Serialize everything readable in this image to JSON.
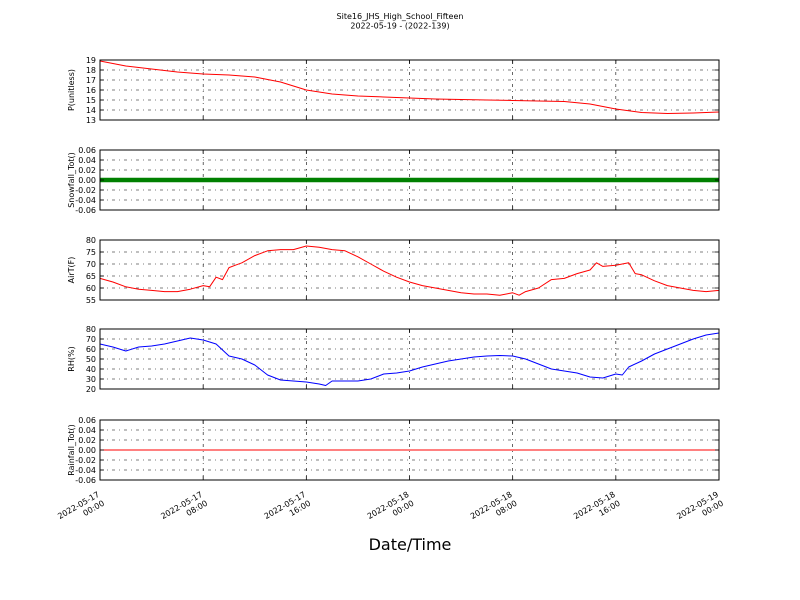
{
  "figure": {
    "title_line1": "Site16_JHS_High_School_Fifteen",
    "title_line2": "2022-05-19 - (2022-139)",
    "xlabel": "Date/Time",
    "x_ticks": [
      {
        "l1": "2022-05-17",
        "l2": "00:00",
        "h": 0
      },
      {
        "l1": "2022-05-17",
        "l2": "08:00",
        "h": 8
      },
      {
        "l1": "2022-05-17",
        "l2": "16:00",
        "h": 16
      },
      {
        "l1": "2022-05-18",
        "l2": "00:00",
        "h": 24
      },
      {
        "l1": "2022-05-18",
        "l2": "08:00",
        "h": 32
      },
      {
        "l1": "2022-05-18",
        "l2": "16:00",
        "h": 40
      },
      {
        "l1": "2022-05-19",
        "l2": "00:00",
        "h": 48
      }
    ]
  },
  "chart_data": [
    {
      "type": "line",
      "ylabel": "P(unitless)",
      "ylim": [
        13,
        19
      ],
      "yticks": [
        13,
        14,
        15,
        16,
        17,
        18,
        19
      ],
      "grid": true,
      "color": "#ff0000",
      "x_hours": [
        0,
        2,
        4,
        6,
        8,
        10,
        12,
        14,
        16,
        18,
        20,
        22,
        24,
        26,
        28,
        30,
        32,
        34,
        36,
        38,
        40,
        42,
        44,
        46,
        48
      ],
      "values": [
        18.9,
        18.4,
        18.1,
        17.8,
        17.6,
        17.5,
        17.3,
        16.8,
        16.0,
        15.6,
        15.4,
        15.3,
        15.2,
        15.1,
        15.05,
        15.0,
        14.95,
        14.9,
        14.85,
        14.6,
        14.1,
        13.75,
        13.65,
        13.7,
        13.8
      ]
    },
    {
      "type": "line",
      "ylabel": "Snowfall_Tot()",
      "ylim": [
        -0.06,
        0.06
      ],
      "yticks": [
        -0.06,
        -0.04,
        -0.02,
        0.0,
        0.02,
        0.04,
        0.06
      ],
      "grid": true,
      "color": "#008000",
      "marker": "dot",
      "x_hours": [
        0,
        48
      ],
      "values": [
        0,
        0
      ]
    },
    {
      "type": "line",
      "ylabel": "AirT(F)",
      "ylim": [
        55,
        80
      ],
      "yticks": [
        55,
        60,
        65,
        70,
        75,
        80
      ],
      "grid": true,
      "color": "#ff0000",
      "x_hours": [
        0,
        1,
        2,
        3,
        4,
        5,
        6,
        7,
        8,
        8.5,
        9,
        9.5,
        10,
        10.5,
        11,
        12,
        13,
        14,
        15,
        16,
        17,
        18,
        19,
        20,
        21,
        22,
        23,
        24,
        25,
        26,
        27,
        28,
        29,
        30,
        31,
        32,
        32.5,
        33,
        34,
        35,
        36,
        37,
        38,
        38.5,
        39,
        40,
        41,
        41.5,
        42,
        43,
        44,
        45,
        46,
        47,
        48
      ],
      "values": [
        64,
        62.5,
        60.5,
        59.5,
        59,
        58.5,
        58.5,
        59.5,
        61,
        60.5,
        64.5,
        63.5,
        68.5,
        69.5,
        70.5,
        73.5,
        75.5,
        76,
        76,
        77.5,
        77,
        76,
        75.5,
        73,
        70,
        67,
        64.5,
        62.5,
        61,
        60,
        59,
        58,
        57.5,
        57.5,
        57,
        58,
        57,
        58.5,
        60,
        63.5,
        64,
        66,
        67.5,
        70.5,
        69,
        69.5,
        70.5,
        66,
        65.5,
        63,
        61,
        60,
        59,
        58.5,
        59
      ]
    },
    {
      "type": "line",
      "ylabel": "RH(%)",
      "ylim": [
        20,
        80
      ],
      "yticks": [
        20,
        30,
        40,
        50,
        60,
        70,
        80
      ],
      "grid": true,
      "color": "#0000ff",
      "x_hours": [
        0,
        1,
        2,
        3,
        4,
        5,
        6,
        7,
        8,
        9,
        10,
        11,
        12,
        13,
        14,
        15,
        16,
        17,
        17.5,
        18,
        19,
        20,
        21,
        22,
        23,
        24,
        25,
        26,
        27,
        28,
        29,
        30,
        31,
        32,
        33,
        34,
        35,
        36,
        37,
        38,
        39,
        40,
        40.5,
        41,
        42,
        43,
        44,
        45,
        46,
        47,
        48
      ],
      "values": [
        65,
        62,
        58,
        62,
        63,
        65,
        68,
        71,
        69,
        65,
        53,
        50,
        44,
        34,
        29,
        28,
        27,
        25,
        23.5,
        28,
        28,
        28,
        30,
        35,
        36,
        38,
        42,
        45,
        48,
        50,
        52,
        53,
        53.5,
        53,
        50,
        45,
        40,
        38,
        36,
        32,
        31,
        35,
        34,
        42,
        48,
        55,
        60,
        65,
        70,
        74,
        76
      ]
    },
    {
      "type": "line",
      "ylabel": "Rainfall_Tot()",
      "ylim": [
        -0.06,
        0.06
      ],
      "yticks": [
        -0.06,
        -0.04,
        -0.02,
        0.0,
        0.02,
        0.04,
        0.06
      ],
      "grid": true,
      "color": "#ff0000",
      "x_hours": [
        0,
        48
      ],
      "values": [
        0,
        0
      ]
    }
  ]
}
